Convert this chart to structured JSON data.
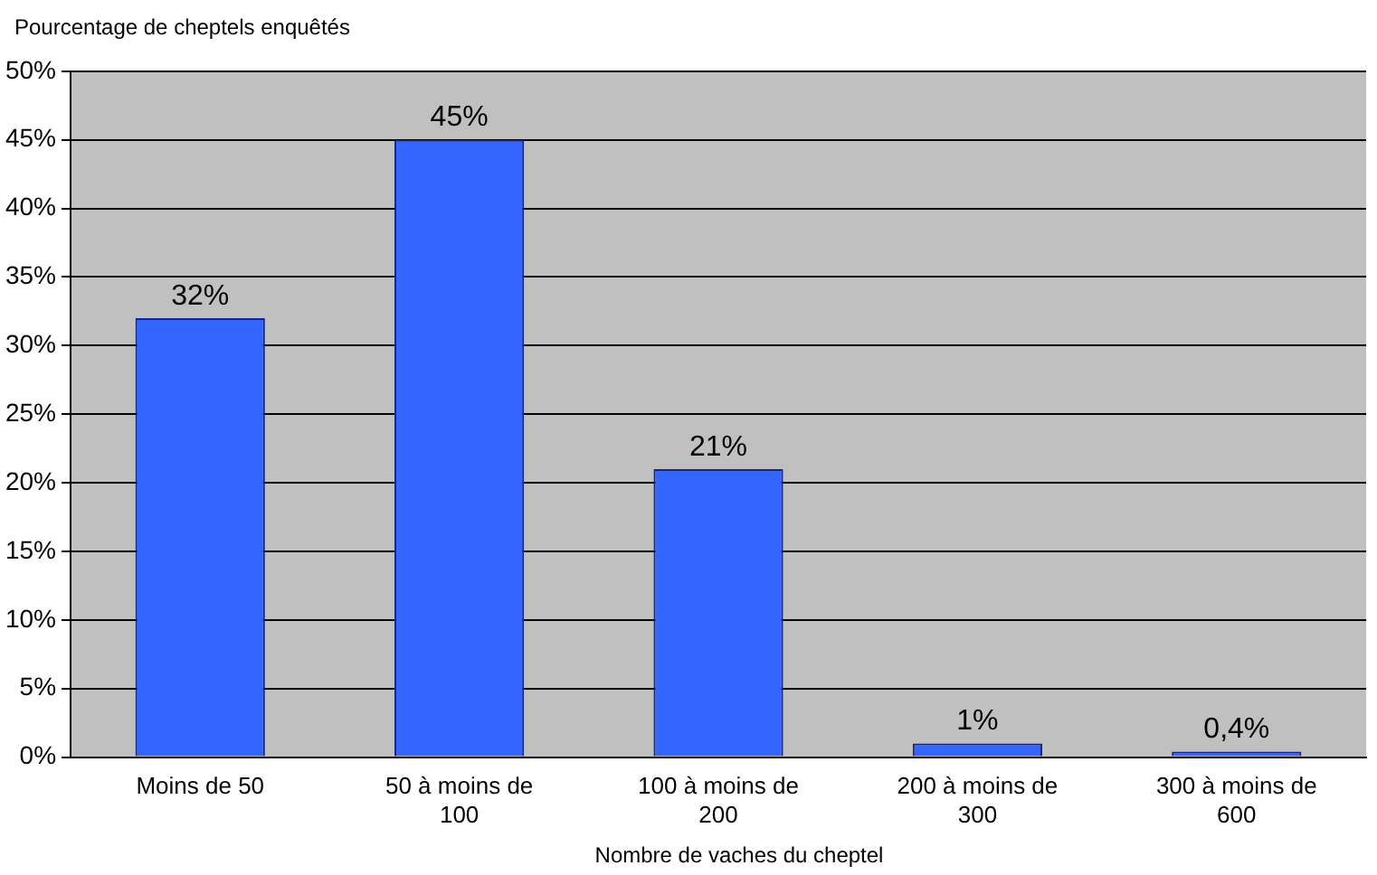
{
  "chart_data": {
    "type": "bar",
    "ylabel": "Pourcentage de cheptels enquêtés",
    "xlabel": "Nombre de vaches du cheptel",
    "categories": [
      "Moins de 50",
      "50 à moins de 100",
      "100 à moins de 200",
      "200 à moins de 300",
      "300 à moins de 600"
    ],
    "values": [
      32,
      45,
      21,
      1,
      0.4
    ],
    "value_labels": [
      "32%",
      "45%",
      "21%",
      "1%",
      "0,4%"
    ],
    "color": "#3366ff",
    "ylim": [
      0,
      50
    ],
    "yticks": [
      {
        "value": 0,
        "label": "0%"
      },
      {
        "value": 5,
        "label": "5%"
      },
      {
        "value": 10,
        "label": "10%"
      },
      {
        "value": 15,
        "label": "15%"
      },
      {
        "value": 20,
        "label": "20%"
      },
      {
        "value": 25,
        "label": "25%"
      },
      {
        "value": 30,
        "label": "30%"
      },
      {
        "value": 35,
        "label": "35%"
      },
      {
        "value": 40,
        "label": "40%"
      },
      {
        "value": 45,
        "label": "45%"
      },
      {
        "value": 50,
        "label": "50%"
      }
    ],
    "grid": "y",
    "legend": false
  }
}
